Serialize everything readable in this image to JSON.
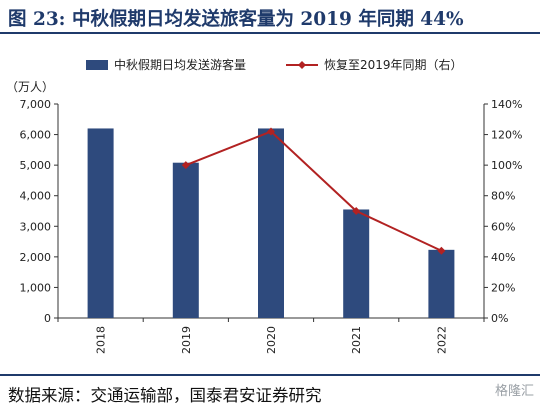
{
  "title": "图 23: 中秋假期日均发送旅客量为 2019 年同期 44%",
  "source": "数据来源：交通运输部，国泰君安证券研究",
  "watermark": "格隆汇",
  "colors": {
    "bar": "#2e4a7d",
    "line": "#b22222",
    "axis": "#333333",
    "title": "#1f3a6b"
  },
  "chart_data": {
    "type": "bar",
    "categories": [
      "2018",
      "2019",
      "2020",
      "2021",
      "2022"
    ],
    "left_unit": "（万人）",
    "left_ylim": [
      0,
      7000
    ],
    "left_ticks": [
      "0",
      "1,000",
      "2,000",
      "3,000",
      "4,000",
      "5,000",
      "6,000",
      "7,000"
    ],
    "right_ylim": [
      0,
      140
    ],
    "right_ticks": [
      "0%",
      "20%",
      "40%",
      "60%",
      "80%",
      "100%",
      "120%",
      "140%"
    ],
    "legend_position": "top",
    "grid": false,
    "series": [
      {
        "name": "中秋假期日均发送游客量",
        "type": "bar",
        "axis": "left",
        "values": [
          6200,
          5080,
          6200,
          3550,
          2230
        ]
      },
      {
        "name": "恢复至2019年同期（右）",
        "type": "line",
        "axis": "right",
        "marker": "diamond",
        "values": [
          null,
          100,
          122,
          70,
          44
        ]
      }
    ]
  }
}
